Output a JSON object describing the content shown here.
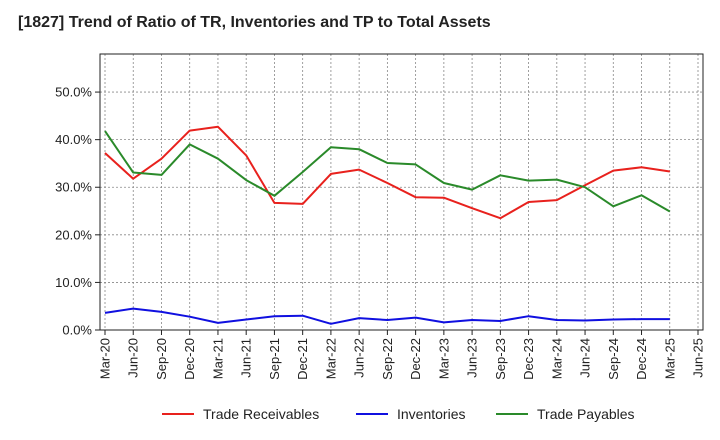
{
  "chart_data": {
    "type": "line",
    "title": "[1827]  Trend of Ratio of TR, Inventories and TP to Total Assets",
    "xlabel": "",
    "ylabel": "",
    "x": [
      "Mar-20",
      "Jun-20",
      "Sep-20",
      "Dec-20",
      "Mar-21",
      "Jun-21",
      "Sep-21",
      "Dec-21",
      "Mar-22",
      "Jun-22",
      "Sep-22",
      "Dec-22",
      "Mar-23",
      "Jun-23",
      "Sep-23",
      "Dec-23",
      "Mar-24",
      "Jun-24",
      "Sep-24",
      "Dec-24",
      "Mar-25",
      "Jun-25"
    ],
    "ylim": [
      0,
      58
    ],
    "yticks": [
      0,
      10,
      20,
      30,
      40,
      50
    ],
    "ytick_labels": [
      "0.0%",
      "10.0%",
      "20.0%",
      "30.0%",
      "40.0%",
      "50.0%"
    ],
    "grid": true,
    "legend_position": "bottom",
    "series": [
      {
        "name": "Trade Receivables",
        "color": "#e8211d",
        "values": [
          37.2,
          31.8,
          36.0,
          41.9,
          42.7,
          36.7,
          26.7,
          26.5,
          32.8,
          33.7,
          30.9,
          27.9,
          27.8,
          25.6,
          23.5,
          26.9,
          27.3,
          30.4,
          33.5,
          34.2,
          33.3,
          null
        ]
      },
      {
        "name": "Inventories",
        "color": "#1010e0",
        "values": [
          3.6,
          4.5,
          3.8,
          2.8,
          1.5,
          2.2,
          2.9,
          3.0,
          1.3,
          2.5,
          2.1,
          2.6,
          1.6,
          2.1,
          1.9,
          2.9,
          2.1,
          2.0,
          2.2,
          2.3,
          2.3,
          null
        ]
      },
      {
        "name": "Trade Payables",
        "color": "#2a8a2a",
        "values": [
          41.8,
          33.1,
          32.6,
          39.0,
          36.0,
          31.5,
          28.2,
          33.2,
          38.4,
          38.0,
          35.1,
          34.8,
          30.9,
          29.5,
          32.5,
          31.4,
          31.6,
          30.0,
          26.0,
          28.3,
          24.9,
          null
        ]
      }
    ]
  }
}
